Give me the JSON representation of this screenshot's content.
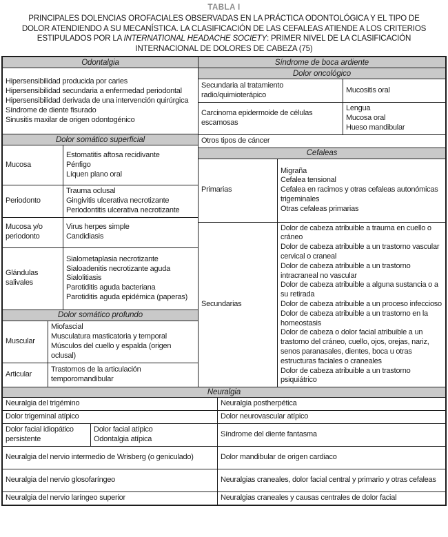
{
  "title": {
    "table_label": "TABLA I",
    "text_before_italic": "PRINCIPALES DOLENCIAS OROFACIALES OBSERVADAS EN LA PRÁCTICA ODONTOLÓGICA Y EL TIPO DE\nDOLOR ATENDIENDO A SU MECANÍSTICA. LA CLASIFICACIÓN DE LAS CEFALEAS ATIENDE A LOS CRITERIOS\nESTIPULADOS POR LA ",
    "italic_text": "INTERNATIONAL HEADACHE SOCIETY",
    "text_after_italic": ": PRIMER NIVEL DE LA CLASIFICACIÓN\nINTERNACIONAL DE DOLORES DE CABEZA (75)"
  },
  "colors": {
    "header_band": "#c9c9c9",
    "border": "#1c1c1c",
    "table_label_gray": "#8c8c8c"
  },
  "odontalgia": {
    "header": "Odontalgia",
    "items": [
      "Hipersensibilidad producida por caries",
      "Hipersensibilidad secundaria a enfermedad periodontal",
      "Hipersensibilidad derivada de una intervención quirúrgica",
      "Síndrome de diente fisurado",
      "Sinusitis maxilar de origen odontogénico"
    ]
  },
  "dolor_somatico_superficial": {
    "header": "Dolor somático superficial",
    "rows": [
      {
        "label": "Mucosa",
        "items": [
          "Estomatitis aftosa recidivante",
          "Pénfigo",
          "Líquen plano oral"
        ]
      },
      {
        "label": "Periodonto",
        "items": [
          "Trauma oclusal",
          "Gingivitis ulcerativa necrotizante",
          "Periodontitis ulcerativa necrotizante"
        ]
      },
      {
        "label": "Mucosa y/o periodonto",
        "items": [
          "Virus herpes simple",
          "Candidiasis"
        ]
      },
      {
        "label": "Glándulas salivales",
        "items": [
          "Sialometaplasia necrotizante",
          "Sialoadenitis necrotizante aguda",
          "Sialolitiasis",
          "Parotiditis aguda bacteriana",
          "Parotiditis aguda epidémica (paperas)"
        ]
      }
    ]
  },
  "dolor_somatico_profundo": {
    "header": "Dolor somático profundo",
    "rows": [
      {
        "label": "Muscular",
        "items": [
          "Miofascial",
          "Musculatura masticatoria y temporal",
          "Músculos del cuello y espalda (origen oclusal)"
        ]
      },
      {
        "label": "Articular",
        "items": [
          "Trastornos de la articulación temporomandibular"
        ]
      }
    ]
  },
  "boca_ardiente": {
    "header": "Síndrome de boca ardiente"
  },
  "dolor_oncologico": {
    "header": "Dolor oncológico",
    "rows": [
      {
        "cause": "Secundaria al tratamiento radio/quimioterápico",
        "sites": [
          "Mucositis oral"
        ]
      },
      {
        "cause": "Carcinoma epidermoide de células escamosas",
        "sites": [
          "Lengua",
          "Mucosa oral",
          "Hueso mandibular"
        ]
      }
    ],
    "footer": "Otros tipos de cáncer"
  },
  "cefaleas": {
    "header": "Cefaleas",
    "rows": [
      {
        "label": "Primarias",
        "items": [
          "Migraña",
          "Cefalea tensional",
          "Cefalea en racimos y otras cefaleas autonómicas trigeminales",
          "Otras cefaleas primarias"
        ]
      },
      {
        "label": "Secundarias",
        "items": [
          "Dolor de cabeza atribuible a trauma en cuello o cráneo",
          "Dolor de cabeza atribuible a un trastorno vascular cervical o craneal",
          "Dolor de cabeza atribuible a un trastorno intracraneal no vascular",
          "Dolor de cabeza atribuible a alguna sustancia o a su retirada",
          "Dolor de cabeza atribuible a un proceso infeccioso",
          "Dolor de cabeza atribuible a un trastorno en la homeostasis",
          "Dolor de cabeza o dolor facial atribuible a un trastorno del cráneo, cuello, ojos, orejas, nariz, senos paranasales, dientes, boca u otras estructuras faciales o craneales",
          "Dolor de cabeza atribuible a un trastorno psiquiátrico"
        ]
      }
    ]
  },
  "neuralgia": {
    "header": "Neuralgia",
    "rows": [
      {
        "left": "Neuralgia del trigémino",
        "right": "Neuralgia postherpética"
      },
      {
        "left": "Dolor trigeminal atípico",
        "right": "Dolor neurovascular atípico"
      },
      {
        "left_primary": "Dolor facial idiopático persistente",
        "left_secondary": [
          "Dolor facial atípico",
          "Odontalgia atípica"
        ],
        "right": "Síndrome del diente fantasma"
      },
      {
        "left": "Neuralgia del nervio intermedio de Wrisberg (o geniculado)",
        "right": "Dolor mandibular de origen cardiaco"
      },
      {
        "left": "Neuralgia del nervio glosofaríngeo",
        "right": "Neuralgias craneales, dolor facial central y primario y otras cefaleas"
      },
      {
        "left": "Neuralgia del nervio laríngeo superior",
        "right": "Neuralgias craneales y causas centrales de dolor facial"
      }
    ]
  }
}
